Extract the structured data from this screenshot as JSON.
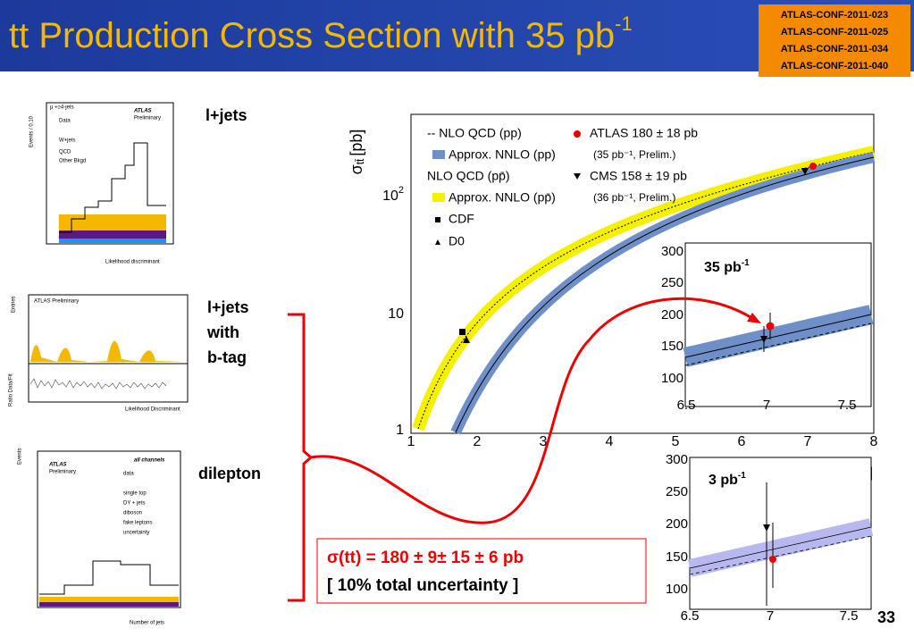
{
  "header": {
    "title": "tt Production Cross Section with 35 pb",
    "title_sup": "-1",
    "refs": [
      "ATLAS-CONF-2011-023",
      "ATLAS-CONF-2011-025",
      "ATLAS-CONF-2011-034",
      "ATLAS-CONF-2011-040"
    ]
  },
  "panels": [
    {
      "label": "l+jets",
      "texts": [
        "ATLAS",
        "Preliminary",
        "μ +≥4-jets",
        "Data",
        "W+jets",
        "QCD",
        "Other Bkgd",
        "Likelihood discriminant",
        "Events / 0.10"
      ]
    },
    {
      "label_lines": [
        "l+jets",
        "with",
        "b-tag"
      ],
      "texts": [
        "ATLAS Preliminary",
        "Likelihood Discriminant",
        "Entries",
        "Ratio Data/Fit"
      ]
    },
    {
      "label": "dilepton",
      "texts": [
        "ATLAS",
        "Preliminary",
        "all channels",
        "data",
        "single top",
        "DY + jets",
        "diboson",
        "fake leptons",
        "uncertainty",
        "Number of jets",
        "Events"
      ]
    }
  ],
  "main_plot": {
    "y_label": "σ",
    "y_label_sub": "tt̄",
    "y_label_unit": "[pb]",
    "x_label_fragment": "V]",
    "xticks": [
      "1",
      "2",
      "3",
      "4",
      "5",
      "6",
      "7",
      "8"
    ],
    "yticks": [
      "1",
      "10",
      "10"
    ],
    "ytick_sup": "2",
    "legend": [
      "-- NLO QCD (pp)",
      "Approx. NNLO (pp)",
      "NLO QCD (pp̄)",
      "Approx. NNLO (pp̄)",
      "CDF",
      "D0",
      "ATLAS 180 ± 18 pb",
      "(35 pb⁻¹, Prelim.)",
      "CMS 158 ± 19 pb",
      "(36 pb⁻¹, Prelim.)"
    ]
  },
  "inset_1": {
    "label": "35 pb",
    "label_sup": "-1",
    "yticks": [
      "300",
      "250",
      "200",
      "150",
      "100"
    ],
    "xticks": [
      "6.5",
      "7",
      "7.5"
    ]
  },
  "inset_2": {
    "label": "3 pb",
    "label_sup": "-1",
    "yticks": [
      "300",
      "250",
      "200",
      "150",
      "100"
    ],
    "xticks": [
      "6.5",
      "7",
      "7.5"
    ]
  },
  "result": {
    "line1": "σ(tt) = 180 ± 9± 15 ± 6 pb",
    "line2": "[ 10% total uncertainty ]"
  },
  "page_number": "33"
}
